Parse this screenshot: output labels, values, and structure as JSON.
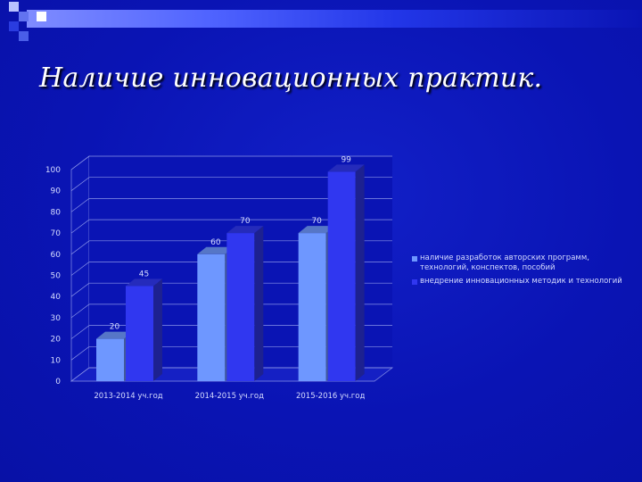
{
  "slide": {
    "title": "Наличие инновационных практик.",
    "colors": {
      "background": "#0a14b4",
      "bar_light": "#6e97ff",
      "bar_dark": "#3037f0",
      "grid": "#8a94e8",
      "text": "#d6dcff"
    }
  },
  "chart_data": {
    "type": "bar",
    "style": "3d-clustered",
    "categories": [
      "2013-2014 уч.год",
      "2014-2015 уч.год",
      "2015-2016 уч.год"
    ],
    "series": [
      {
        "name": "наличие разработок авторских программ, технологий, конспектов, пособий",
        "values": [
          20,
          60,
          70
        ],
        "color": "#6e97ff"
      },
      {
        "name": "внедрение инновационных методик и технологий",
        "values": [
          45,
          70,
          99
        ],
        "color": "#3037f0"
      }
    ],
    "yticks": [
      0,
      10,
      20,
      30,
      40,
      50,
      60,
      70,
      80,
      90,
      100
    ],
    "ylim": [
      0,
      100
    ],
    "grid": true,
    "legend_position": "right"
  }
}
